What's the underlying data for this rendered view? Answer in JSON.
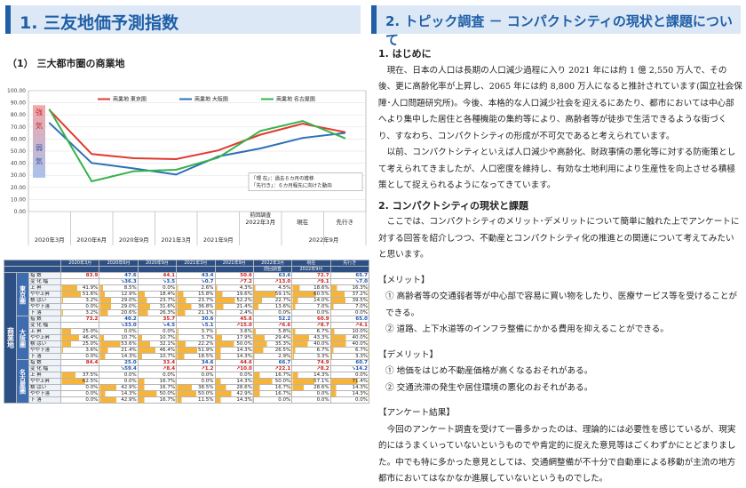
{
  "left": {
    "title": "1. 三友地価予測指数",
    "subtitle": "（1） 三大都市圏の商業地",
    "table": {
      "headers": [
        "2020年3月",
        "2020年6月",
        "2020年9月",
        "2021年3月",
        "2021年9月",
        "2022年3月",
        "現在",
        "先行き"
      ],
      "subheaders": [
        "",
        "",
        "",
        "",
        "",
        "前回調査",
        "2022年9月",
        ""
      ],
      "group": "商業地",
      "blocks": [
        {
          "city": "東京圏",
          "index": [
            "83.9",
            "47.6",
            "44.1",
            "43.4",
            "50.6",
            "63.6",
            "72.7",
            "65.7"
          ],
          "change": [
            "",
            "↘36.3",
            "↘3.5",
            "↘0.7",
            "↗7.2",
            "↗13.0",
            "↗9.1",
            "↘7.0"
          ],
          "rows": [
            {
              "label": "上 昇",
              "v": [
                "41.9%",
                "8.5%",
                "0.0%",
                "2.6%",
                "4.3%",
                "4.5%",
                "18.6%",
                "16.3%"
              ]
            },
            {
              "label": "やや上昇",
              "v": [
                "51.6%",
                "12.9%",
                "18.4%",
                "15.8%",
                "19.6%",
                "59.1%",
                "60.5%",
                "37.2%"
              ]
            },
            {
              "label": "横 ばい",
              "v": [
                "3.2%",
                "29.0%",
                "23.7%",
                "23.7%",
                "52.2%",
                "22.7%",
                "14.0%",
                "39.5%"
              ]
            },
            {
              "label": "やや下落",
              "v": [
                "0.0%",
                "29.0%",
                "31.6%",
                "36.8%",
                "21.4%",
                "13.6%",
                "7.0%",
                "7.0%"
              ]
            },
            {
              "label": "下 落",
              "v": [
                "3.2%",
                "20.6%",
                "26.3%",
                "21.1%",
                "2.4%",
                "0.0%",
                "0.0%",
                "0.0%"
              ]
            }
          ]
        },
        {
          "city": "大阪圏",
          "index": [
            "73.2",
            "40.2",
            "35.7",
            "30.6",
            "45.6",
            "52.2",
            "60.9",
            "65.0"
          ],
          "change": [
            "",
            "↘33.0",
            "↘4.5",
            "↘5.1",
            "↗15.0",
            "↗6.6",
            "↗8.7",
            "↗4.1"
          ],
          "rows": [
            {
              "label": "上 昇",
              "v": [
                "25.0%",
                "0.0%",
                "0.0%",
                "3.7%",
                "3.6%",
                "5.8%",
                "6.7%",
                "10.0%"
              ]
            },
            {
              "label": "やや上昇",
              "v": [
                "46.4%",
                "10.7%",
                "10.7%",
                "3.7%",
                "17.9%",
                "29.4%",
                "43.3%",
                "40.0%"
              ]
            },
            {
              "label": "横 ばい",
              "v": [
                "25.0%",
                "53.6%",
                "32.1%",
                "22.2%",
                "50.0%",
                "35.3%",
                "40.0%",
                "40.0%"
              ]
            },
            {
              "label": "やや下落",
              "v": [
                "3.6%",
                "21.4%",
                "46.4%",
                "51.9%",
                "14.3%",
                "26.5%",
                "6.7%",
                "6.7%"
              ]
            },
            {
              "label": "下 落",
              "v": [
                "0.0%",
                "14.3%",
                "10.7%",
                "18.5%",
                "14.3%",
                "2.9%",
                "3.3%",
                "3.3%"
              ]
            }
          ]
        },
        {
          "city": "名古屋圏",
          "index": [
            "84.4",
            "25.0",
            "33.4",
            "34.6",
            "44.6",
            "66.7",
            "74.9",
            "60.7"
          ],
          "change": [
            "",
            "↘59.4",
            "↗8.4",
            "↗1.2",
            "↗10.0",
            "↗22.1",
            "↗8.2",
            "↘14.2"
          ],
          "rows": [
            {
              "label": "上 昇",
              "v": [
                "37.5%",
                "0.0%",
                "0.0%",
                "0.0%",
                "0.0%",
                "16.7%",
                "14.3%",
                "0.0%"
              ]
            },
            {
              "label": "やや上昇",
              "v": [
                "62.5%",
                "0.0%",
                "16.7%",
                "0.0%",
                "14.3%",
                "50.0%",
                "57.1%",
                "71.4%"
              ]
            },
            {
              "label": "横 ばい",
              "v": [
                "0.0%",
                "42.9%",
                "16.7%",
                "38.5%",
                "28.6%",
                "16.7%",
                "28.6%",
                "14.3%"
              ]
            },
            {
              "label": "やや下落",
              "v": [
                "0.0%",
                "14.3%",
                "50.0%",
                "50.0%",
                "42.9%",
                "16.7%",
                "0.0%",
                "14.3%"
              ]
            },
            {
              "label": "下 落",
              "v": [
                "0.0%",
                "42.9%",
                "16.7%",
                "11.5%",
                "14.3%",
                "0.0%",
                "0.0%",
                "0.0%"
              ]
            }
          ]
        }
      ],
      "idx_label": "指 数",
      "chg_label": "変 化 幅"
    }
  },
  "chart_data": {
    "type": "line",
    "categories": [
      "2020年3月",
      "2020年6月",
      "2020年9月",
      "2021年3月",
      "2021年9月",
      "2022年3月",
      "現在",
      "先行き"
    ],
    "bottom_labels": [
      "前回調査",
      "2022年9月"
    ],
    "ylim": [
      0,
      100
    ],
    "yticks": [
      "0.00",
      "10.00",
      "20.00",
      "30.00",
      "40.00",
      "50.00",
      "60.00",
      "70.00",
      "80.00",
      "90.00",
      "100.00"
    ],
    "series": [
      {
        "name": "商業地 東京圏",
        "color": "#e03a2f",
        "values": [
          83.9,
          47.6,
          44.1,
          43.4,
          50.6,
          63.6,
          72.7,
          65.7
        ]
      },
      {
        "name": "商業地 大阪圏",
        "color": "#2e6fb5",
        "values": [
          73.2,
          40.2,
          35.7,
          30.6,
          45.6,
          52.2,
          60.9,
          65.0
        ]
      },
      {
        "name": "商業地 名古屋圏",
        "color": "#36b34a",
        "values": [
          84.4,
          25.0,
          33.4,
          34.6,
          44.6,
          66.7,
          74.9,
          60.7
        ]
      }
    ],
    "side_labels": [
      "強",
      "気",
      "弱",
      "気"
    ],
    "notes": [
      "「現 在」：過去６カ月の推移",
      "「先行き」：６カ月程先に向けた動向"
    ]
  },
  "right": {
    "title": "2. トピック調査 － コンパクトシティの現状と課題について",
    "h1": "1. はじめに",
    "p1": "現在、日本の人口は長期の人口減少過程に入り 2021 年には約 1 億 2,550 万人で、その後、更に高齢化率が上昇し、2065 年には約 8,800 万人になると推計されています(国立社会保障･人口問題研究所)。今後、本格的な人口減少社会を迎えるにあたり、都市においては中心部へより集中した居住と各種機能の集約等により、高齢者等が徒歩で生活できるような街づくり、すなわち、コンパクトシティの形成が不可欠であると考えられています。",
    "p2": "以前、コンパクトシティといえば人口減少や高齢化、財政事情の悪化等に対する防衛策として考えられてきましたが、人口密度を維持し、有効な土地利用により生産性を向上させる積極策として捉えられるようになってきています。",
    "h2": "2. コンパクトシティの現状と課題",
    "p3": "ここでは、コンパクトシティのメリット･デメリットについて簡単に触れた上でアンケートに対する回答を紹介しつつ、不動産とコンパクトシティ化の推進との関連について考えてみたいと思います。",
    "merit": "【メリット】",
    "m1": "① 高齢者等の交通弱者等が中心部で容易に買い物をしたり、医療サービス等を受けることができる。",
    "m2": "② 道路、上下水道等のインフラ整備にかかる費用を抑えることができる。",
    "demerit": "【デメリット】",
    "d1": "① 地価をはじめ不動産価格が高くなるおそれがある。",
    "d2": "② 交通渋滞の発生や居住環境の悪化のおそれがある。",
    "survey": "【アンケート結果】",
    "p4": "今回のアンケート調査を受けて一番多かったのは、理論的には必要性を感じているが、現実的にはうまくいっていないというものでや肯定的に捉えた意見等はごくわずかにとどまりました。中でも特に多かった意見としては、交通網整備が不十分で自動車による移動が主流の地方都市においてはなかなか進展していないというものでした。"
  }
}
